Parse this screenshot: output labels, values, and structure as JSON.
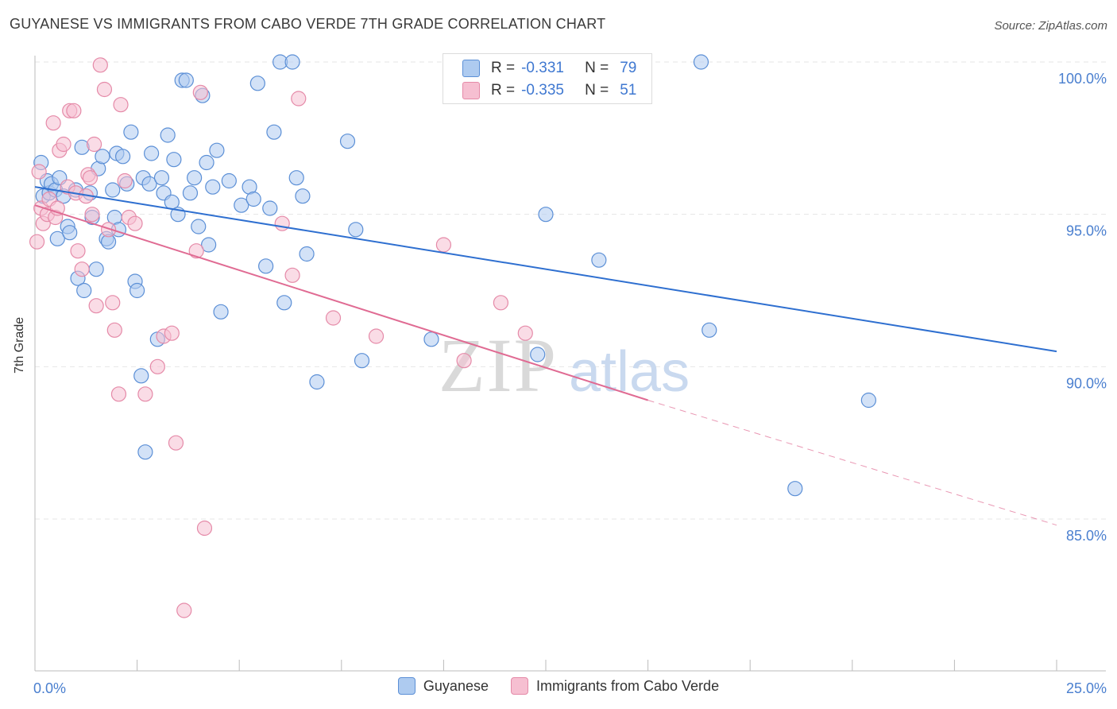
{
  "title": "GUYANESE VS IMMIGRANTS FROM CABO VERDE 7TH GRADE CORRELATION CHART",
  "source": "Source: ZipAtlas.com",
  "watermark": {
    "zip": "ZIP",
    "atlas": "atlas"
  },
  "legend_top": {
    "rows": [
      {
        "r_label": "R =",
        "r_value": "-0.331",
        "n_label": "N =",
        "n_value": "79"
      },
      {
        "r_label": "R =",
        "r_value": "-0.335",
        "n_label": "N =",
        "n_value": "51"
      }
    ]
  },
  "legend_bottom": {
    "items": [
      {
        "label": "Guyanese"
      },
      {
        "label": "Immigrants from Cabo Verde"
      }
    ]
  },
  "colors": {
    "blue_fill": "#aecbf0",
    "blue_stroke": "#5b8fd6",
    "blue_line": "#2e6fd0",
    "pink_fill": "#f6bfd1",
    "pink_stroke": "#e58aa8",
    "pink_line": "#e06b93",
    "grid": "#e6e6e6"
  },
  "chart_data": {
    "type": "scatter",
    "title": "GUYANESE VS IMMIGRANTS FROM CABO VERDE 7TH GRADE CORRELATION CHART",
    "xlabel": "",
    "ylabel": "7th Grade",
    "xlim": [
      0,
      25
    ],
    "ylim": [
      80.5,
      100.5
    ],
    "x_tick_labels": [
      "0.0%",
      "25.0%"
    ],
    "y_ticks": [
      85,
      90,
      95,
      100
    ],
    "y_tick_labels": [
      "85.0%",
      "90.0%",
      "95.0%",
      "100.0%"
    ],
    "series": [
      {
        "name": "Guyanese",
        "color": "blue",
        "r": -0.331,
        "n": 79,
        "trend": {
          "x0": 0.0,
          "y0": 95.9,
          "x1": 25.0,
          "y1": 90.5
        },
        "points": [
          [
            0.15,
            96.7
          ],
          [
            0.2,
            95.6
          ],
          [
            0.3,
            96.1
          ],
          [
            0.35,
            95.7
          ],
          [
            0.4,
            96.0
          ],
          [
            0.5,
            95.8
          ],
          [
            0.55,
            94.2
          ],
          [
            0.6,
            96.2
          ],
          [
            0.7,
            95.6
          ],
          [
            0.8,
            94.6
          ],
          [
            0.85,
            94.4
          ],
          [
            1.0,
            95.8
          ],
          [
            1.05,
            92.9
          ],
          [
            1.15,
            97.2
          ],
          [
            1.2,
            92.5
          ],
          [
            1.35,
            95.7
          ],
          [
            1.4,
            94.9
          ],
          [
            1.5,
            93.2
          ],
          [
            1.55,
            96.5
          ],
          [
            1.65,
            96.9
          ],
          [
            1.75,
            94.2
          ],
          [
            1.8,
            94.1
          ],
          [
            1.9,
            95.8
          ],
          [
            1.95,
            94.9
          ],
          [
            2.0,
            97.0
          ],
          [
            2.05,
            94.5
          ],
          [
            2.15,
            96.9
          ],
          [
            2.25,
            96.0
          ],
          [
            2.35,
            97.7
          ],
          [
            2.45,
            92.8
          ],
          [
            2.5,
            92.5
          ],
          [
            2.6,
            89.7
          ],
          [
            2.65,
            96.2
          ],
          [
            2.7,
            87.2
          ],
          [
            2.8,
            96.0
          ],
          [
            2.85,
            97.0
          ],
          [
            3.0,
            90.9
          ],
          [
            3.1,
            96.2
          ],
          [
            3.15,
            95.7
          ],
          [
            3.25,
            97.6
          ],
          [
            3.35,
            95.4
          ],
          [
            3.4,
            96.8
          ],
          [
            3.5,
            95.0
          ],
          [
            3.6,
            99.4
          ],
          [
            3.7,
            99.4
          ],
          [
            3.8,
            95.7
          ],
          [
            3.9,
            96.2
          ],
          [
            4.0,
            94.6
          ],
          [
            4.1,
            98.9
          ],
          [
            4.2,
            96.7
          ],
          [
            4.25,
            94.0
          ],
          [
            4.35,
            95.9
          ],
          [
            4.45,
            97.1
          ],
          [
            4.55,
            91.8
          ],
          [
            4.75,
            96.1
          ],
          [
            5.05,
            95.3
          ],
          [
            5.25,
            95.9
          ],
          [
            5.35,
            95.5
          ],
          [
            5.45,
            99.3
          ],
          [
            5.65,
            93.3
          ],
          [
            5.75,
            95.2
          ],
          [
            5.85,
            97.7
          ],
          [
            6.0,
            100.0
          ],
          [
            6.1,
            92.1
          ],
          [
            6.3,
            100.0
          ],
          [
            6.4,
            96.2
          ],
          [
            6.55,
            95.6
          ],
          [
            6.65,
            93.7
          ],
          [
            6.9,
            89.5
          ],
          [
            7.65,
            97.4
          ],
          [
            7.85,
            94.5
          ],
          [
            8.0,
            90.2
          ],
          [
            9.7,
            90.9
          ],
          [
            12.3,
            90.4
          ],
          [
            12.5,
            95.0
          ],
          [
            13.8,
            93.5
          ],
          [
            16.3,
            100.0
          ],
          [
            16.5,
            91.2
          ],
          [
            20.4,
            88.9
          ],
          [
            18.6,
            86.0
          ]
        ]
      },
      {
        "name": "Immigrants from Cabo Verde",
        "color": "pink",
        "r": -0.335,
        "n": 51,
        "trend": {
          "x0": 0.0,
          "y0": 95.3,
          "x1": 15.0,
          "y1": 88.9,
          "dash_x1": 25.0,
          "dash_y1": 84.8
        },
        "points": [
          [
            0.05,
            94.1
          ],
          [
            0.1,
            96.4
          ],
          [
            0.15,
            95.2
          ],
          [
            0.2,
            94.7
          ],
          [
            0.3,
            95.0
          ],
          [
            0.35,
            95.5
          ],
          [
            0.45,
            98.0
          ],
          [
            0.5,
            94.9
          ],
          [
            0.55,
            95.2
          ],
          [
            0.6,
            97.1
          ],
          [
            0.7,
            97.3
          ],
          [
            0.8,
            95.9
          ],
          [
            0.85,
            98.4
          ],
          [
            0.95,
            98.4
          ],
          [
            1.0,
            95.7
          ],
          [
            1.05,
            93.8
          ],
          [
            1.15,
            93.2
          ],
          [
            1.25,
            95.6
          ],
          [
            1.3,
            96.3
          ],
          [
            1.35,
            96.2
          ],
          [
            1.4,
            95.0
          ],
          [
            1.45,
            97.3
          ],
          [
            1.5,
            92.0
          ],
          [
            1.6,
            99.9
          ],
          [
            1.7,
            99.1
          ],
          [
            1.8,
            94.5
          ],
          [
            1.9,
            92.1
          ],
          [
            1.95,
            91.2
          ],
          [
            2.05,
            89.1
          ],
          [
            2.1,
            98.6
          ],
          [
            2.2,
            96.1
          ],
          [
            2.3,
            94.9
          ],
          [
            2.45,
            94.7
          ],
          [
            2.7,
            89.1
          ],
          [
            3.0,
            90.0
          ],
          [
            3.15,
            91.0
          ],
          [
            3.35,
            91.1
          ],
          [
            3.45,
            87.5
          ],
          [
            3.65,
            82.0
          ],
          [
            3.95,
            93.8
          ],
          [
            4.05,
            99.0
          ],
          [
            4.15,
            84.7
          ],
          [
            6.05,
            94.7
          ],
          [
            6.3,
            93.0
          ],
          [
            6.45,
            98.8
          ],
          [
            7.3,
            91.6
          ],
          [
            8.35,
            91.0
          ],
          [
            10.0,
            94.0
          ],
          [
            11.4,
            92.1
          ],
          [
            12.0,
            91.1
          ],
          [
            10.5,
            90.2
          ]
        ]
      }
    ]
  }
}
